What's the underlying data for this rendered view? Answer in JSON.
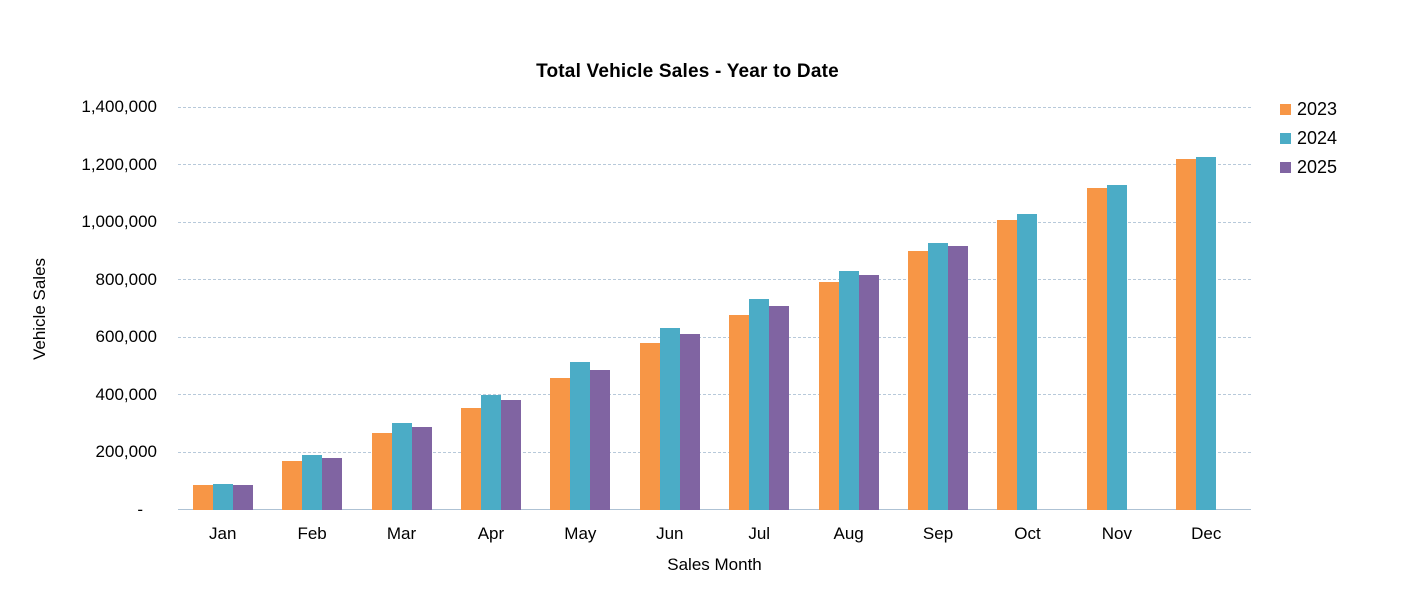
{
  "chart_data": {
    "type": "bar",
    "title": "Total Vehicle Sales - Year to Date",
    "xlabel": "Sales Month",
    "ylabel": "Vehicle Sales",
    "categories": [
      "Jan",
      "Feb",
      "Mar",
      "Apr",
      "May",
      "Jun",
      "Jul",
      "Aug",
      "Sep",
      "Oct",
      "Nov",
      "Dec"
    ],
    "series": [
      {
        "name": "2023",
        "color": "#F79646",
        "values": [
          86000,
          169000,
          267000,
          354000,
          457000,
          581000,
          677000,
          792000,
          900000,
          1008000,
          1120000,
          1218000
        ]
      },
      {
        "name": "2024",
        "color": "#4BACC6",
        "values": [
          90000,
          190000,
          302000,
          401000,
          513000,
          632000,
          732000,
          830000,
          927000,
          1028000,
          1130000,
          1225000
        ]
      },
      {
        "name": "2025",
        "color": "#8064A2",
        "values": [
          86000,
          181000,
          288000,
          383000,
          487000,
          610000,
          710000,
          815000,
          916000,
          null,
          null,
          null
        ]
      }
    ],
    "ylim": [
      0,
      1400000
    ],
    "ytick_step": 200000,
    "ytick_labels": [
      "-",
      "200,000",
      "400,000",
      "600,000",
      "800,000",
      "1,000,000",
      "1,200,000",
      "1,400,000"
    ],
    "grid": true,
    "legend_position": "right-top",
    "gridline_color": "#b7c9da",
    "axis_line_color": "#aec2d4",
    "background_color": "#ffffff"
  }
}
